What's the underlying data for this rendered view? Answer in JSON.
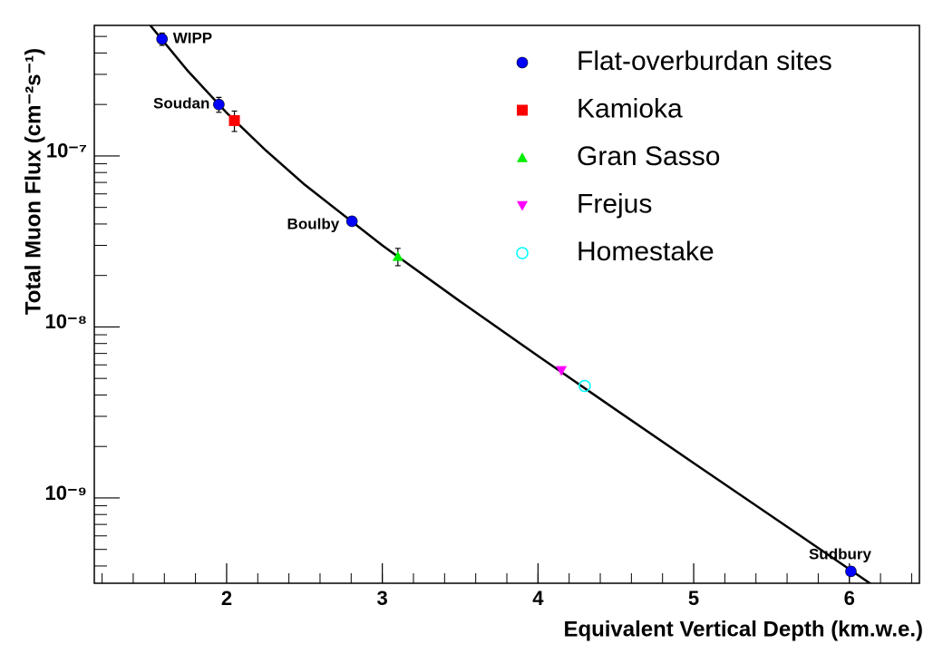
{
  "chart_data": {
    "type": "scatter",
    "xlabel": "Equivalent Vertical Depth (km.w.e.)",
    "ylabel": "Total Muon Flux (cm⁻²s⁻¹)",
    "xlim": [
      1.15,
      6.45
    ],
    "ylim": [
      3.17e-10,
      5.8e-07
    ],
    "xticks": [
      2,
      3,
      4,
      5,
      6
    ],
    "yticks": [
      {
        "value": 1e-09,
        "label": "10⁻⁹"
      },
      {
        "value": 1e-08,
        "label": "10⁻⁸"
      },
      {
        "value": 1e-07,
        "label": "10⁻⁷"
      }
    ],
    "yscale": "log",
    "legend": "upper right",
    "series": [
      {
        "name": "Flat-overburdan sites",
        "color": "#0000ff",
        "marker": "circle",
        "x": [
          1.585,
          1.95,
          2.805,
          6.01
        ],
        "values": [
          4.83e-07,
          2e-07,
          4.15e-08,
          3.72e-10
        ],
        "errors": [
          4e-08,
          2e-08,
          null,
          null
        ],
        "point_labels": [
          "WIPP",
          "Soudan",
          "Boulby",
          "Sudbury"
        ]
      },
      {
        "name": "Kamioka",
        "color": "#ff0000",
        "marker": "square",
        "x": [
          2.05
        ],
        "values": [
          1.61e-07
        ],
        "errors": [
          2.2e-08
        ]
      },
      {
        "name": "Gran Sasso",
        "color": "#00ee00",
        "marker": "triangle-up",
        "x": [
          3.1
        ],
        "values": [
          2.58e-08
        ],
        "errors": [
          3e-09
        ]
      },
      {
        "name": "Frejus",
        "color": "#ff00ff",
        "marker": "triangle-down",
        "x": [
          4.15
        ],
        "values": [
          5.56e-09
        ],
        "errors": [
          null
        ]
      },
      {
        "name": "Homestake",
        "color": "#00ffff",
        "marker": "circle-open",
        "x": [
          4.3
        ],
        "values": [
          4.52e-09
        ],
        "errors": [
          null
        ]
      }
    ],
    "fit": {
      "color": "#000000",
      "x": [
        1.5,
        1.75,
        2,
        2.25,
        2.5,
        3,
        3.5,
        4,
        4.5,
        5,
        5.5,
        6,
        6.2
      ],
      "values": [
        5.94e-07,
        3.15e-07,
        1.79e-07,
        1.08e-07,
        6.81e-08,
        3e-08,
        1.41e-08,
        6.77e-09,
        3.28e-09,
        1.6e-09,
        7.83e-10,
        3.83e-10,
        2.87e-10
      ]
    }
  }
}
